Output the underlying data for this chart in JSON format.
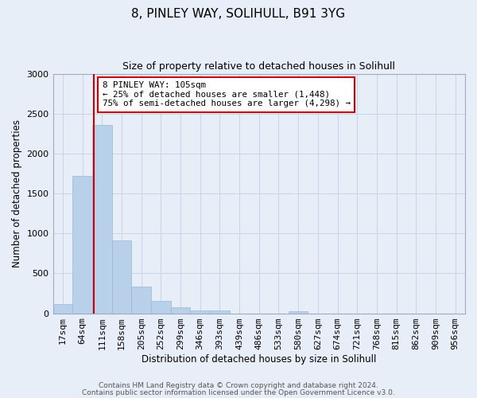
{
  "title": "8, PINLEY WAY, SOLIHULL, B91 3YG",
  "subtitle": "Size of property relative to detached houses in Solihull",
  "xlabel": "Distribution of detached houses by size in Solihull",
  "ylabel": "Number of detached properties",
  "footnote1": "Contains HM Land Registry data © Crown copyright and database right 2024.",
  "footnote2": "Contains public sector information licensed under the Open Government Licence v3.0.",
  "bar_labels": [
    "17sqm",
    "64sqm",
    "111sqm",
    "158sqm",
    "205sqm",
    "252sqm",
    "299sqm",
    "346sqm",
    "393sqm",
    "439sqm",
    "486sqm",
    "533sqm",
    "580sqm",
    "627sqm",
    "674sqm",
    "721sqm",
    "768sqm",
    "815sqm",
    "862sqm",
    "909sqm",
    "956sqm"
  ],
  "bar_values": [
    120,
    1720,
    2360,
    910,
    335,
    155,
    80,
    40,
    35,
    0,
    0,
    0,
    25,
    0,
    0,
    0,
    0,
    0,
    0,
    0,
    0
  ],
  "bar_color": "#b8d0ea",
  "bar_edge_color": "#9ab8d8",
  "vline_color": "#cc0000",
  "vline_x_index": 1.575,
  "ylim": [
    0,
    3000
  ],
  "yticks": [
    0,
    500,
    1000,
    1500,
    2000,
    2500,
    3000
  ],
  "annotation_title": "8 PINLEY WAY: 105sqm",
  "annotation_line1": "← 25% of detached houses are smaller (1,448)",
  "annotation_line2": "75% of semi-detached houses are larger (4,298) →",
  "annotation_box_facecolor": "#ffffff",
  "annotation_box_edgecolor": "#cc0000",
  "grid_color": "#c8d4e8",
  "bg_color": "#e8eef8",
  "spine_color": "#a0aac0",
  "title_fontsize": 11,
  "subtitle_fontsize": 9,
  "ylabel_fontsize": 8.5,
  "xlabel_fontsize": 8.5,
  "tick_fontsize": 8,
  "annot_fontsize": 7.8,
  "footnote_fontsize": 6.5
}
